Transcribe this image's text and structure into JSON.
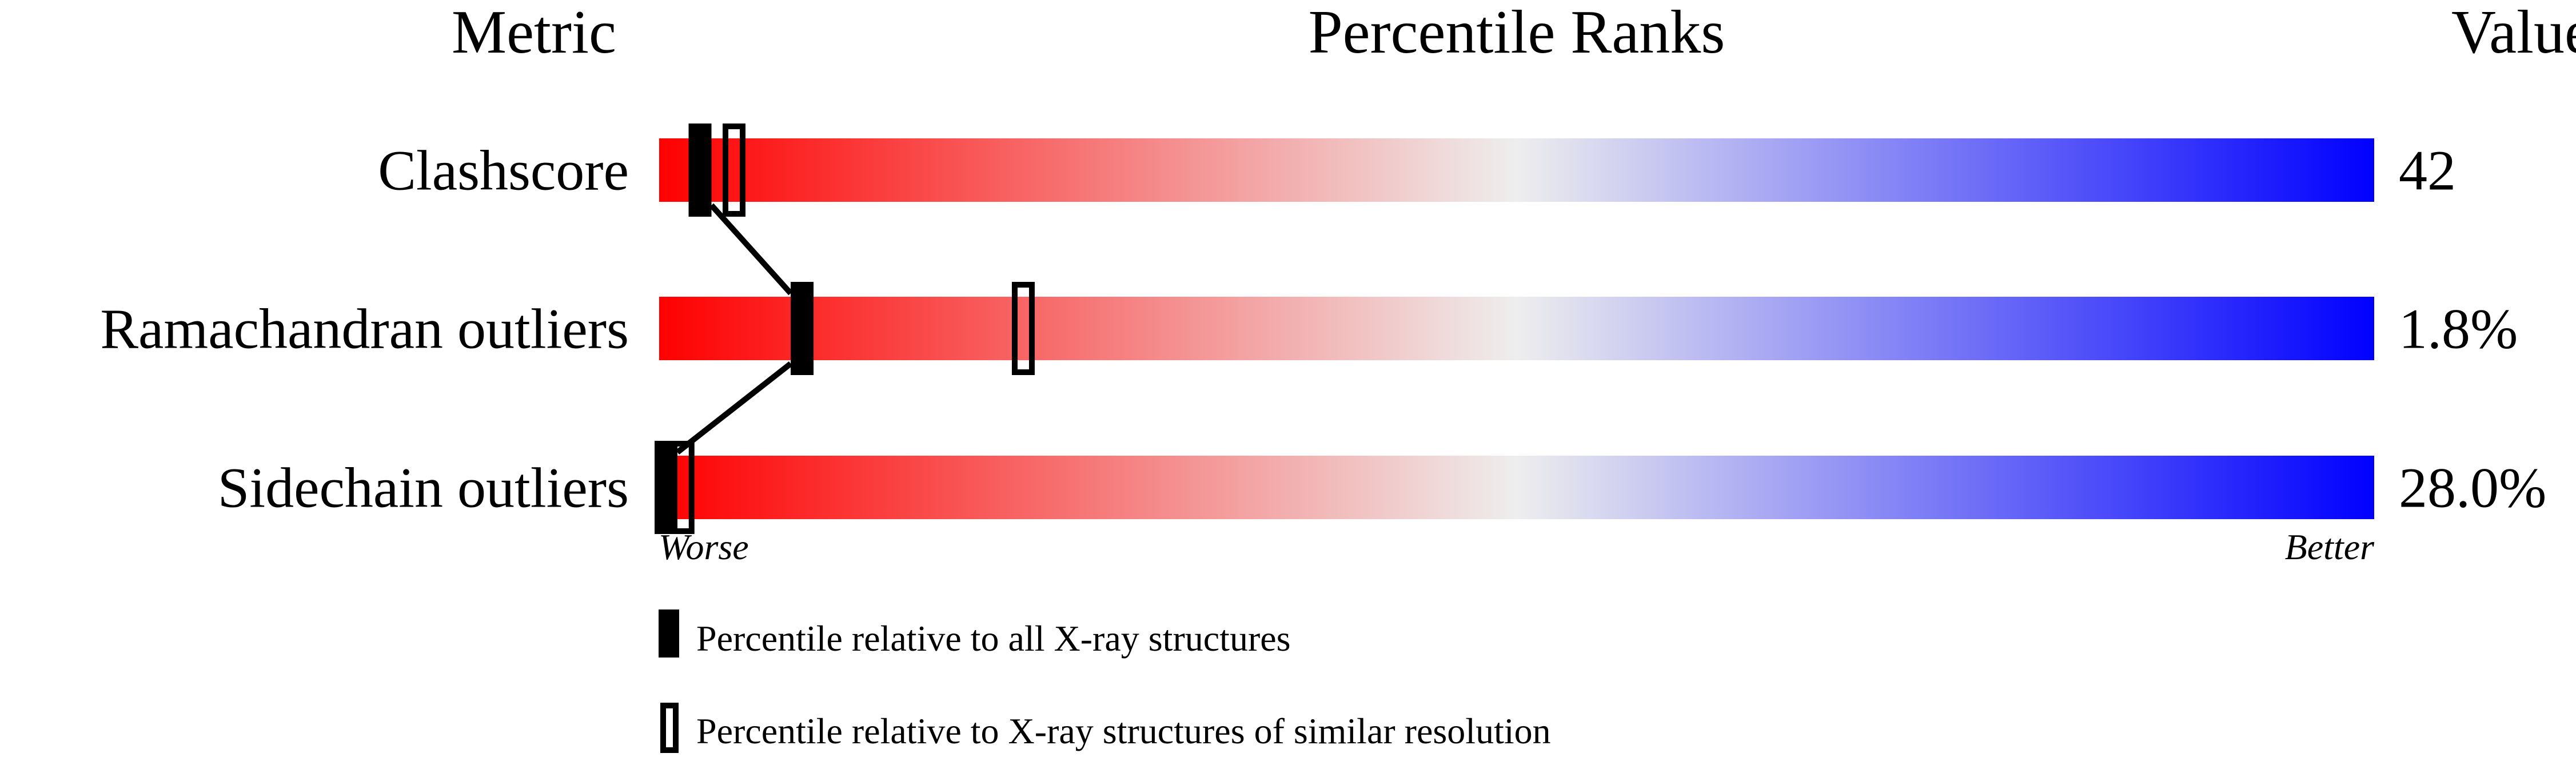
{
  "chart_data": {
    "type": "bar",
    "headers": {
      "metric": "Metric",
      "percentile": "Percentile Ranks",
      "value": "Value"
    },
    "xlim": [
      0,
      100
    ],
    "axis_labels": {
      "left": "Worse",
      "right": "Better"
    },
    "gradient_colors": {
      "worse": "#ff0000",
      "middle": "#eeeeee",
      "better": "#0000ff"
    },
    "rows": [
      {
        "metric": "Clashscore",
        "value": "42",
        "percentile_all": 2,
        "percentile_similar": 4
      },
      {
        "metric": "Ramachandran outliers",
        "value": "1.8%",
        "percentile_all": 8,
        "percentile_similar": 21
      },
      {
        "metric": "Sidechain outliers",
        "value": "28.0%",
        "percentile_all": 0,
        "percentile_similar": 1
      }
    ],
    "legend": [
      {
        "marker": "filled",
        "label": "Percentile relative to all X-ray structures"
      },
      {
        "marker": "open",
        "label": "Percentile relative to X-ray structures of similar resolution"
      }
    ]
  }
}
